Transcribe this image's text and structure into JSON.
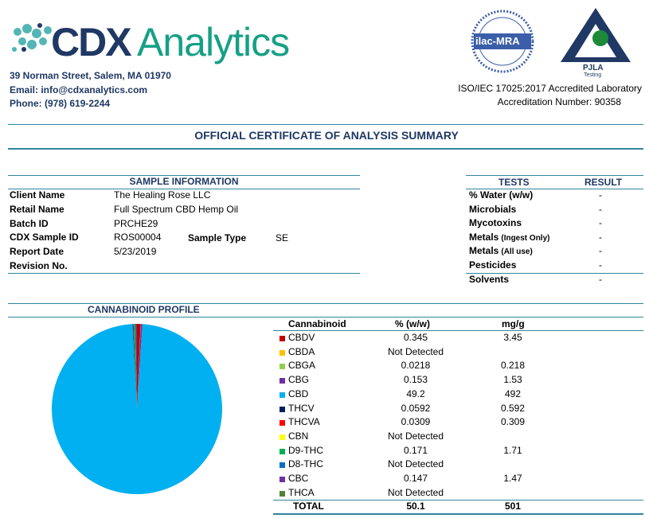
{
  "header": {
    "logo_part1": "CDX",
    "logo_part2": "Analytics",
    "address": "39 Norman Street, Salem, MA 01970",
    "email": "Email: info@cdxanalytics.com",
    "phone": "Phone: (978) 619-2244",
    "ilac": "ilac-MRA",
    "pjla": "PJLA",
    "pjla_sub": "Testing",
    "accreditation": "ISO/IEC 17025:2017 Accredited Laboratory",
    "accreditation_number": "Accreditation Number: 90358"
  },
  "title": "OFFICIAL CERTIFICATE OF ANALYSIS SUMMARY",
  "sample_info": {
    "heading": "SAMPLE INFORMATION",
    "rows": [
      [
        "Client Name",
        "The Healing Rose LLC"
      ],
      [
        "Retail Name",
        "Full Spectrum CBD Hemp Oil"
      ],
      [
        "Batch ID",
        "PRCHE29"
      ],
      [
        "CDX Sample ID",
        "ROS00004"
      ],
      [
        "Report Date",
        "5/23/2019"
      ],
      [
        "Revision No."
      ]
    ],
    "sample_type_label": "Sample Type",
    "sample_type": "SE"
  },
  "tests": {
    "headers": [
      "TESTS",
      "RESULT"
    ],
    "rows": [
      {
        "name": "% Water (w/w)",
        "result": "-"
      },
      {
        "name": "Microbials",
        "result": "-"
      },
      {
        "name": "Mycotoxins",
        "result": "-"
      },
      {
        "name": "Metals",
        "note": "(Ingest Only)",
        "result": "-"
      },
      {
        "name": "Metals",
        "note": "(All use)",
        "result": "-"
      },
      {
        "name": "Pesticides",
        "result": "-"
      },
      {
        "name": "Solvents",
        "result": "-"
      }
    ]
  },
  "cannabinoid_profile": {
    "heading": "CANNABINOID PROFILE",
    "columns": [
      "Cannabinoid",
      "% (w/w)",
      "mg/g"
    ],
    "rows": [
      {
        "name": "CBDV",
        "color": "#c00000",
        "percent": 0.345,
        "mg_g": 3.45
      },
      {
        "name": "CBDA",
        "color": "#ffc000",
        "percent": "Not Detected"
      },
      {
        "name": "CBGA",
        "color": "#92d050",
        "percent": 0.0218,
        "mg_g": 0.218
      },
      {
        "name": "CBG",
        "color": "#7030a0",
        "percent": 0.153,
        "mg_g": 1.53
      },
      {
        "name": "CBD",
        "color": "#00b0f0",
        "percent": 49.2,
        "mg_g": 492
      },
      {
        "name": "THCV",
        "color": "#002060",
        "percent": 0.0592,
        "mg_g": 0.592
      },
      {
        "name": "THCVA",
        "color": "#ff0000",
        "percent": 0.0309,
        "mg_g": 0.309
      },
      {
        "name": "CBN",
        "color": "#ffff00",
        "percent": "Not Detected"
      },
      {
        "name": "D9-THC",
        "color": "#00b050",
        "percent": 0.171,
        "mg_g": 1.71
      },
      {
        "name": "D8-THC",
        "color": "#0070c0",
        "percent": "Not Detected"
      },
      {
        "name": "CBC",
        "color": "#7030a0",
        "percent": 0.147,
        "mg_g": 1.47
      },
      {
        "name": "THCA",
        "color": "#548235",
        "percent": "Not Detected"
      }
    ],
    "total": {
      "label": "TOTAL",
      "percent": 50.1,
      "mg_g": 501
    }
  }
}
